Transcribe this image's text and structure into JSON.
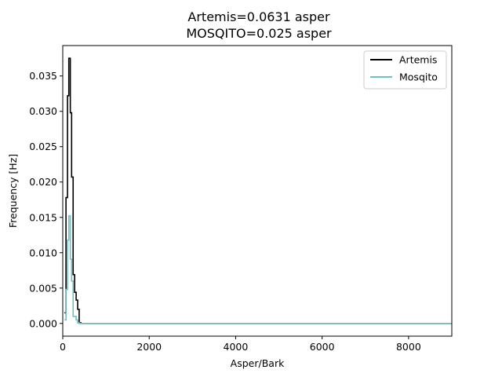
{
  "chart_data": {
    "type": "line",
    "title_lines": [
      "Artemis=0.0631 asper",
      "MOSQITO=0.025 asper"
    ],
    "xlabel": "Asper/Bark",
    "ylabel": "Frequency [Hz]",
    "xlim": [
      0,
      9000
    ],
    "ylim": [
      -0.0018,
      0.0393
    ],
    "x_ticks": [
      0,
      2000,
      4000,
      6000,
      8000
    ],
    "x_tick_labels": [
      "0",
      "2000",
      "4000",
      "6000",
      "8000"
    ],
    "y_ticks": [
      0.0,
      0.005,
      0.01,
      0.015,
      0.02,
      0.025,
      0.03,
      0.035
    ],
    "y_tick_labels": [
      "0.000",
      "0.005",
      "0.010",
      "0.015",
      "0.020",
      "0.025",
      "0.030",
      "0.035"
    ],
    "step": "post",
    "legend_position": "top-right",
    "grid": false,
    "series": [
      {
        "name": "Artemis",
        "color": "#000000",
        "x": [
          40,
          75,
          110,
          140,
          175,
          205,
          240,
          275,
          310,
          345,
          380,
          420,
          9000
        ],
        "y": [
          0.0015,
          0.0178,
          0.0322,
          0.0375,
          0.0298,
          0.0207,
          0.0069,
          0.0044,
          0.0033,
          0.002,
          0.0001,
          0.0,
          0.0
        ]
      },
      {
        "name": "Mosqito",
        "color": "#6cc1c4",
        "x": [
          40,
          75,
          110,
          140,
          175,
          205,
          240,
          275,
          310,
          345,
          380,
          420,
          9000
        ],
        "y": [
          0.0005,
          0.0048,
          0.0118,
          0.0152,
          0.0091,
          0.006,
          0.001,
          0.001,
          0.0005,
          0.0001,
          0.0,
          0.0,
          0.0
        ]
      }
    ]
  }
}
